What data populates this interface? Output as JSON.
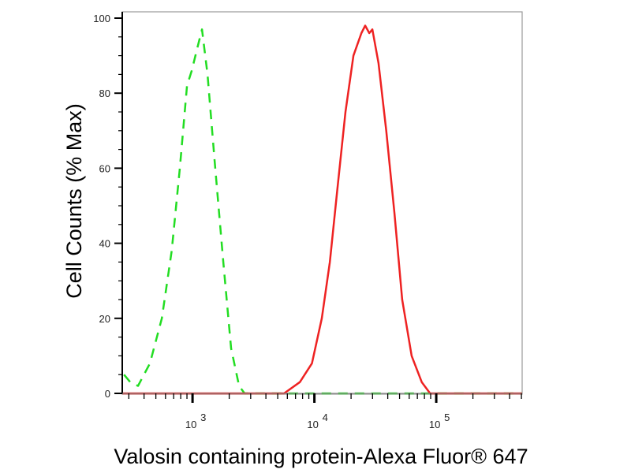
{
  "chart_data": {
    "type": "line",
    "title": "",
    "xlabel": "Valosin containing protein-Alexa Fluor® 647",
    "ylabel": "Cell Counts (% Max)",
    "x_scale": "log",
    "xlim": [
      265,
      507000
    ],
    "ylim": [
      0,
      100
    ],
    "x_ticks": [
      {
        "value": 1000,
        "base": "10",
        "exp": "3"
      },
      {
        "value": 10000,
        "base": "10",
        "exp": "4"
      },
      {
        "value": 100000,
        "base": "10",
        "exp": "5"
      }
    ],
    "y_ticks": [
      0,
      20,
      40,
      60,
      80,
      100
    ],
    "grid": false,
    "legend": "none",
    "series": [
      {
        "color": "#22dd22",
        "style": "dashed",
        "x": [
          274,
          308,
          357,
          447,
          560,
          675,
          787,
          901,
          985,
          1094,
          1196,
          1327,
          1518,
          1788,
          2074,
          2410,
          2673,
          507000
        ],
        "y": [
          5,
          3,
          2,
          8,
          20,
          38,
          60,
          82,
          86,
          92,
          97,
          85,
          62,
          35,
          12,
          2,
          0,
          0
        ]
      },
      {
        "color": "#ee2222",
        "style": "solid",
        "x": [
          265,
          5640,
          7600,
          9550,
          11500,
          13400,
          15500,
          18000,
          20900,
          24300,
          26100,
          28200,
          29900,
          33600,
          38900,
          45400,
          52500,
          62800,
          76000,
          89000,
          507000
        ],
        "y": [
          0,
          0,
          3,
          8,
          20,
          35,
          55,
          75,
          90,
          96,
          98,
          96,
          97,
          88,
          70,
          48,
          25,
          10,
          3,
          0,
          0
        ]
      }
    ]
  }
}
